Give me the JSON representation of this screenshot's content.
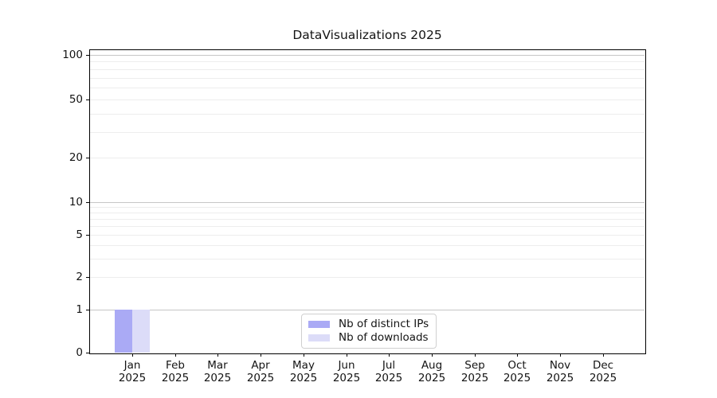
{
  "chart_data": {
    "type": "bar",
    "title": "DataVisualizations 2025",
    "categories": [
      "Jan",
      "Feb",
      "Mar",
      "Apr",
      "May",
      "Jun",
      "Jul",
      "Aug",
      "Sep",
      "Oct",
      "Nov",
      "Dec"
    ],
    "category_year": "2025",
    "series": [
      {
        "name": "Nb of distinct IPs",
        "color": "#aaaaf5",
        "values": [
          1,
          0,
          0,
          0,
          0,
          0,
          0,
          0,
          0,
          0,
          0,
          0
        ]
      },
      {
        "name": "Nb of downloads",
        "color": "#dcdcf8",
        "values": [
          1,
          0,
          0,
          0,
          0,
          0,
          0,
          0,
          0,
          0,
          0,
          0
        ]
      }
    ],
    "xlabel": "",
    "ylabel": "",
    "y_axis": {
      "scale": "symlog",
      "tick_values": [
        0,
        1,
        2,
        5,
        10,
        20,
        50,
        100
      ],
      "tick_labels": [
        "0",
        "1",
        "2",
        "5",
        "10",
        "20",
        "50",
        "100"
      ],
      "major_grid_values": [
        1,
        10,
        100
      ],
      "minor_grid_values": [
        2,
        3,
        4,
        5,
        6,
        7,
        8,
        9,
        20,
        30,
        40,
        50,
        60,
        70,
        80,
        90
      ],
      "ylim": [
        0,
        110
      ]
    },
    "grid": "horizontal",
    "legend_position": "lower-center-inside"
  },
  "colors": {
    "bar_distinct_ips": "#aaaaf5",
    "bar_downloads": "#dcdcf8",
    "grid_minor": "#ededed",
    "grid_major": "#c6c6c6",
    "spine": "#000000",
    "legend_border": "#d0d0d0",
    "text": "#141414"
  }
}
